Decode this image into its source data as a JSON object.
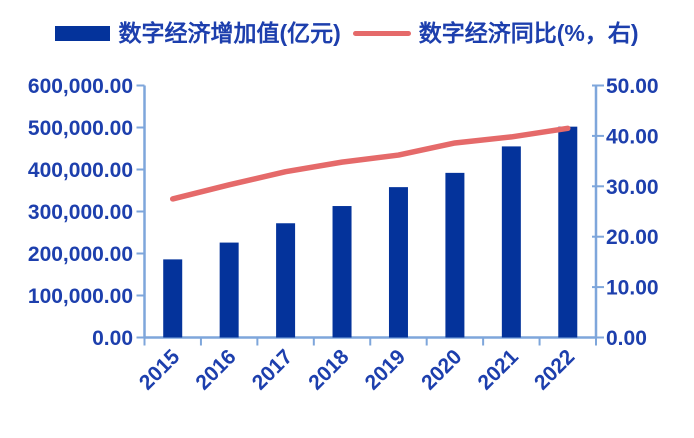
{
  "legend": {
    "items": [
      {
        "label": "数字经济增加值(亿元)",
        "marker": "bar-swatch",
        "color": "#04339B"
      },
      {
        "label": "数字经济同比(%，右)",
        "marker": "line-swatch",
        "color": "#E56A6A"
      }
    ]
  },
  "colors": {
    "bar": "#04339B",
    "line": "#E56A6A",
    "axis": "#7EA6DB",
    "text": "#1D3FAD",
    "background": "#FFFFFF"
  },
  "chart_data": {
    "type": "bar",
    "combo": "bar series on left axis + line series on right axis",
    "title": "",
    "categories": [
      "2015",
      "2016",
      "2017",
      "2018",
      "2019",
      "2020",
      "2021",
      "2022"
    ],
    "series": [
      {
        "name": "数字经济增加值(亿元)",
        "type": "bar",
        "axis": "left",
        "color": "#04339B",
        "values": [
          186000,
          226000,
          272000,
          313000,
          358000,
          392000,
          455000,
          502000
        ]
      },
      {
        "name": "数字经济同比(%，右)",
        "type": "line",
        "axis": "right",
        "color": "#E56A6A",
        "values": [
          27.5,
          30.3,
          32.9,
          34.8,
          36.2,
          38.6,
          39.8,
          41.5
        ]
      }
    ],
    "left_axis": {
      "min": 0,
      "max": 600000,
      "step": 100000,
      "tick_labels": [
        "600,000.00",
        "500,000.00",
        "400,000.00",
        "300,000.00",
        "200,000.00",
        "100,000.00",
        "0.00"
      ]
    },
    "right_axis": {
      "min": 0,
      "max": 50,
      "step": 10,
      "tick_labels": [
        "50.00",
        "40.00",
        "30.00",
        "20.00",
        "10.00",
        "0.00"
      ]
    },
    "grid": false,
    "legend_position": "top",
    "x_label_rotation_deg": -45
  }
}
